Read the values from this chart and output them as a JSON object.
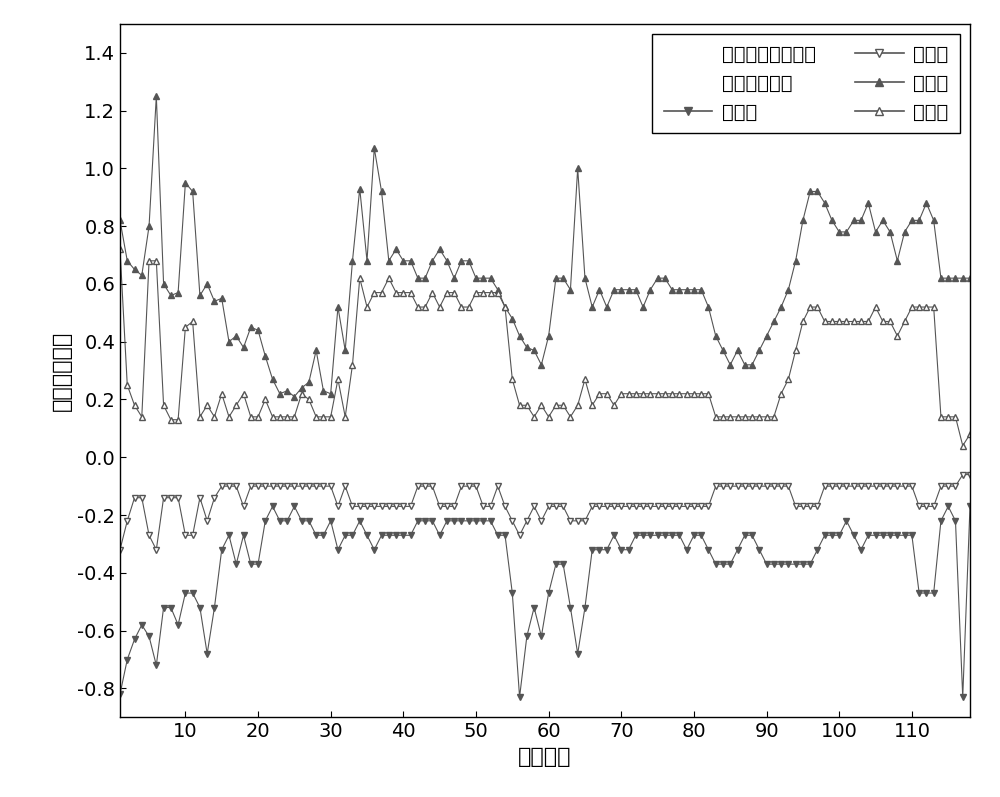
{
  "xlabel": "节点编号",
  "ylabel": "相角（弧度）",
  "xlim": [
    1,
    118
  ],
  "ylim": [
    -0.9,
    1.5
  ],
  "yticks": [
    -0.8,
    -0.6,
    -0.4,
    -0.2,
    0.0,
    0.2,
    0.4,
    0.6,
    0.8,
    1.0,
    1.2,
    1.4
  ],
  "xticks": [
    10,
    20,
    30,
    40,
    50,
    60,
    70,
    80,
    90,
    100,
    110
  ],
  "legend_title_improved": "改进蒙特卡洛算法",
  "legend_title_mc": "蒙特卡洛算法",
  "legend_lower": "下边界",
  "legend_upper": "上边界",
  "line_color": "#555555",
  "marker_size": 5,
  "line_width": 0.8,
  "font_size": 16,
  "tick_font_size": 14,
  "imp_upper": [
    0.82,
    0.68,
    0.65,
    0.63,
    0.8,
    1.25,
    0.6,
    0.56,
    0.57,
    0.95,
    0.92,
    0.56,
    0.6,
    0.54,
    0.55,
    0.4,
    0.42,
    0.38,
    0.45,
    0.44,
    0.35,
    0.27,
    0.22,
    0.23,
    0.21,
    0.24,
    0.26,
    0.37,
    0.23,
    0.22,
    0.52,
    0.37,
    0.68,
    0.93,
    0.68,
    1.07,
    0.92,
    0.68,
    0.72,
    0.68,
    0.68,
    0.62,
    0.62,
    0.68,
    0.72,
    0.68,
    0.62,
    0.68,
    0.68,
    0.62,
    0.62,
    0.62,
    0.58,
    0.52,
    0.48,
    0.42,
    0.38,
    0.37,
    0.32,
    0.42,
    0.62,
    0.62,
    0.58,
    1.0,
    0.62,
    0.52,
    0.58,
    0.52,
    0.58,
    0.58,
    0.58,
    0.58,
    0.52,
    0.58,
    0.62,
    0.62,
    0.58,
    0.58,
    0.58,
    0.58,
    0.58,
    0.52,
    0.42,
    0.37,
    0.32,
    0.37,
    0.32,
    0.32,
    0.37,
    0.42,
    0.47,
    0.52,
    0.58,
    0.68,
    0.82,
    0.92,
    0.92,
    0.88,
    0.82,
    0.78,
    0.78,
    0.82,
    0.82,
    0.88,
    0.78,
    0.82,
    0.78,
    0.68,
    0.78,
    0.82,
    0.82,
    0.88,
    0.82,
    0.62,
    0.62,
    0.62,
    0.62,
    0.62
  ],
  "imp_lower": [
    -0.82,
    -0.7,
    -0.63,
    -0.58,
    -0.62,
    -0.72,
    -0.52,
    -0.52,
    -0.58,
    -0.47,
    -0.47,
    -0.52,
    -0.68,
    -0.52,
    -0.32,
    -0.27,
    -0.37,
    -0.27,
    -0.37,
    -0.37,
    -0.22,
    -0.17,
    -0.22,
    -0.22,
    -0.17,
    -0.22,
    -0.22,
    -0.27,
    -0.27,
    -0.22,
    -0.32,
    -0.27,
    -0.27,
    -0.22,
    -0.27,
    -0.32,
    -0.27,
    -0.27,
    -0.27,
    -0.27,
    -0.27,
    -0.22,
    -0.22,
    -0.22,
    -0.27,
    -0.22,
    -0.22,
    -0.22,
    -0.22,
    -0.22,
    -0.22,
    -0.22,
    -0.27,
    -0.27,
    -0.47,
    -0.83,
    -0.62,
    -0.52,
    -0.62,
    -0.47,
    -0.37,
    -0.37,
    -0.52,
    -0.68,
    -0.52,
    -0.32,
    -0.32,
    -0.32,
    -0.27,
    -0.32,
    -0.32,
    -0.27,
    -0.27,
    -0.27,
    -0.27,
    -0.27,
    -0.27,
    -0.27,
    -0.32,
    -0.27,
    -0.27,
    -0.32,
    -0.37,
    -0.37,
    -0.37,
    -0.32,
    -0.27,
    -0.27,
    -0.32,
    -0.37,
    -0.37,
    -0.37,
    -0.37,
    -0.37,
    -0.37,
    -0.37,
    -0.32,
    -0.27,
    -0.27,
    -0.27,
    -0.22,
    -0.27,
    -0.32,
    -0.27,
    -0.27,
    -0.27,
    -0.27,
    -0.27,
    -0.27,
    -0.27,
    -0.47,
    -0.47,
    -0.47,
    -0.22,
    -0.17,
    -0.22,
    -0.83,
    -0.17
  ],
  "mc_upper": [
    0.72,
    0.25,
    0.18,
    0.14,
    0.68,
    0.68,
    0.18,
    0.13,
    0.13,
    0.45,
    0.47,
    0.14,
    0.18,
    0.14,
    0.22,
    0.14,
    0.18,
    0.22,
    0.14,
    0.14,
    0.2,
    0.14,
    0.14,
    0.14,
    0.14,
    0.22,
    0.2,
    0.14,
    0.14,
    0.14,
    0.27,
    0.14,
    0.32,
    0.62,
    0.52,
    0.57,
    0.57,
    0.62,
    0.57,
    0.57,
    0.57,
    0.52,
    0.52,
    0.57,
    0.52,
    0.57,
    0.57,
    0.52,
    0.52,
    0.57,
    0.57,
    0.57,
    0.57,
    0.52,
    0.27,
    0.18,
    0.18,
    0.14,
    0.18,
    0.14,
    0.18,
    0.18,
    0.14,
    0.18,
    0.27,
    0.18,
    0.22,
    0.22,
    0.18,
    0.22,
    0.22,
    0.22,
    0.22,
    0.22,
    0.22,
    0.22,
    0.22,
    0.22,
    0.22,
    0.22,
    0.22,
    0.22,
    0.14,
    0.14,
    0.14,
    0.14,
    0.14,
    0.14,
    0.14,
    0.14,
    0.14,
    0.22,
    0.27,
    0.37,
    0.47,
    0.52,
    0.52,
    0.47,
    0.47,
    0.47,
    0.47,
    0.47,
    0.47,
    0.47,
    0.52,
    0.47,
    0.47,
    0.42,
    0.47,
    0.52,
    0.52,
    0.52,
    0.52,
    0.14,
    0.14,
    0.14,
    0.04,
    0.08
  ],
  "mc_lower": [
    -0.32,
    -0.22,
    -0.14,
    -0.14,
    -0.27,
    -0.32,
    -0.14,
    -0.14,
    -0.14,
    -0.27,
    -0.27,
    -0.14,
    -0.22,
    -0.14,
    -0.1,
    -0.1,
    -0.1,
    -0.17,
    -0.1,
    -0.1,
    -0.1,
    -0.1,
    -0.1,
    -0.1,
    -0.1,
    -0.1,
    -0.1,
    -0.1,
    -0.1,
    -0.1,
    -0.17,
    -0.1,
    -0.17,
    -0.17,
    -0.17,
    -0.17,
    -0.17,
    -0.17,
    -0.17,
    -0.17,
    -0.17,
    -0.1,
    -0.1,
    -0.1,
    -0.17,
    -0.17,
    -0.17,
    -0.1,
    -0.1,
    -0.1,
    -0.17,
    -0.17,
    -0.1,
    -0.17,
    -0.22,
    -0.27,
    -0.22,
    -0.17,
    -0.22,
    -0.17,
    -0.17,
    -0.17,
    -0.22,
    -0.22,
    -0.22,
    -0.17,
    -0.17,
    -0.17,
    -0.17,
    -0.17,
    -0.17,
    -0.17,
    -0.17,
    -0.17,
    -0.17,
    -0.17,
    -0.17,
    -0.17,
    -0.17,
    -0.17,
    -0.17,
    -0.17,
    -0.1,
    -0.1,
    -0.1,
    -0.1,
    -0.1,
    -0.1,
    -0.1,
    -0.1,
    -0.1,
    -0.1,
    -0.1,
    -0.17,
    -0.17,
    -0.17,
    -0.17,
    -0.1,
    -0.1,
    -0.1,
    -0.1,
    -0.1,
    -0.1,
    -0.1,
    -0.1,
    -0.1,
    -0.1,
    -0.1,
    -0.1,
    -0.1,
    -0.17,
    -0.17,
    -0.17,
    -0.1,
    -0.1,
    -0.1,
    -0.06,
    -0.06
  ]
}
